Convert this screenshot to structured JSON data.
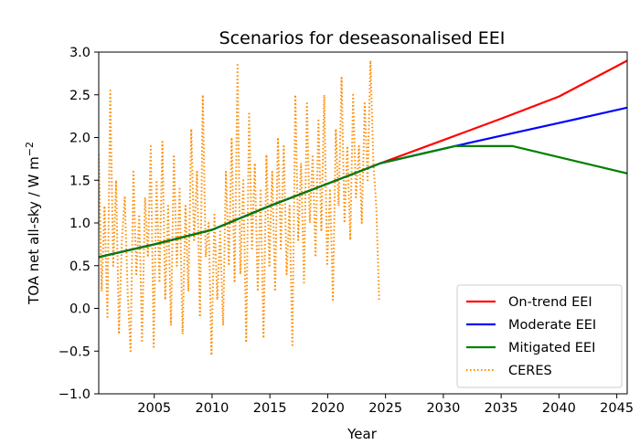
{
  "chart_data": {
    "type": "line",
    "title": "Scenarios for deseasonalised EEI",
    "xlabel": "Year",
    "ylabel": "TOA net all-sky / W m",
    "ylabel_superscript": "−2",
    "xlim": [
      2000.2,
      2045.9
    ],
    "ylim": [
      -1.0,
      3.0
    ],
    "x_ticks": [
      2005,
      2010,
      2015,
      2020,
      2025,
      2030,
      2035,
      2040,
      2045
    ],
    "y_ticks": [
      3.0,
      2.5,
      2.0,
      1.5,
      1.0,
      0.5,
      0.0,
      -0.5,
      -1.0
    ],
    "y_tick_labels": [
      "3.0",
      "2.5",
      "2.0",
      "1.5",
      "1.0",
      "0.5",
      "0.0",
      "−0.5",
      "−1.0"
    ],
    "grid": false,
    "legend_position": "lower-right",
    "series": [
      {
        "name": "On-trend EEI",
        "color": "#ff0000",
        "style": "solid",
        "x": [
          2000.2,
          2005,
          2010,
          2015,
          2020,
          2024.6,
          2030,
          2035,
          2040,
          2045.9
        ],
        "y": [
          0.6,
          0.75,
          0.92,
          1.2,
          1.46,
          1.7,
          1.97,
          2.22,
          2.48,
          2.9
        ]
      },
      {
        "name": "Moderate EEI",
        "color": "#0000ff",
        "style": "solid",
        "x": [
          2000.2,
          2005,
          2010,
          2015,
          2020,
          2024.6,
          2031,
          2035,
          2040,
          2045.9
        ],
        "y": [
          0.6,
          0.75,
          0.92,
          1.2,
          1.46,
          1.7,
          1.9,
          2.02,
          2.17,
          2.35
        ]
      },
      {
        "name": "Mitigated EEI",
        "color": "#008000",
        "style": "solid",
        "x": [
          2000.2,
          2005,
          2010,
          2015,
          2020,
          2024.6,
          2031,
          2036,
          2045.9
        ],
        "y": [
          0.6,
          0.75,
          0.92,
          1.2,
          1.46,
          1.7,
          1.9,
          1.9,
          1.58
        ]
      },
      {
        "name": "CERES",
        "color": "#ff8c00",
        "style": "dotted",
        "x": [
          2000.2,
          2000.45,
          2000.7,
          2000.95,
          2001.2,
          2001.45,
          2001.7,
          2001.95,
          2002.2,
          2002.45,
          2002.7,
          2002.95,
          2003.2,
          2003.45,
          2003.7,
          2003.95,
          2004.2,
          2004.45,
          2004.7,
          2004.95,
          2005.2,
          2005.45,
          2005.7,
          2005.95,
          2006.2,
          2006.45,
          2006.7,
          2006.95,
          2007.2,
          2007.45,
          2007.7,
          2007.95,
          2008.2,
          2008.45,
          2008.7,
          2008.95,
          2009.2,
          2009.45,
          2009.7,
          2009.95,
          2010.2,
          2010.45,
          2010.7,
          2010.95,
          2011.2,
          2011.45,
          2011.7,
          2011.95,
          2012.2,
          2012.45,
          2012.7,
          2012.95,
          2013.2,
          2013.45,
          2013.7,
          2013.95,
          2014.2,
          2014.45,
          2014.7,
          2014.95,
          2015.2,
          2015.45,
          2015.7,
          2015.95,
          2016.2,
          2016.45,
          2016.7,
          2016.95,
          2017.2,
          2017.45,
          2017.7,
          2017.95,
          2018.2,
          2018.45,
          2018.7,
          2018.95,
          2019.2,
          2019.45,
          2019.7,
          2019.95,
          2020.2,
          2020.45,
          2020.7,
          2020.95,
          2021.2,
          2021.45,
          2021.7,
          2021.95,
          2022.2,
          2022.45,
          2022.7,
          2022.95,
          2023.2,
          2023.45,
          2023.7,
          2023.95,
          2024.2,
          2024.45
        ],
        "y": [
          1.8,
          0.2,
          1.2,
          -0.1,
          2.55,
          0.5,
          1.5,
          -0.3,
          0.8,
          1.3,
          0.2,
          -0.5,
          1.6,
          0.4,
          1.1,
          -0.4,
          1.3,
          0.6,
          1.9,
          -0.45,
          1.5,
          0.3,
          1.95,
          0.1,
          1.2,
          -0.2,
          1.8,
          0.5,
          1.4,
          -0.3,
          1.2,
          0.2,
          2.1,
          0.8,
          1.6,
          -0.1,
          2.5,
          0.6,
          1.0,
          -0.55,
          1.1,
          0.1,
          0.9,
          -0.2,
          1.6,
          0.5,
          2.0,
          0.3,
          2.85,
          0.4,
          1.5,
          -0.4,
          2.3,
          0.7,
          1.7,
          0.2,
          1.4,
          -0.35,
          1.8,
          0.5,
          1.6,
          0.2,
          2.0,
          0.7,
          1.9,
          0.4,
          1.2,
          -0.45,
          2.5,
          0.8,
          1.7,
          0.3,
          2.4,
          1.0,
          1.8,
          0.6,
          2.2,
          0.9,
          2.5,
          0.5,
          1.4,
          0.1,
          2.1,
          1.2,
          2.7,
          1.0,
          1.9,
          0.8,
          2.5,
          1.3,
          1.9,
          1.0,
          2.4,
          1.5,
          2.9,
          1.7,
          1.2,
          0.1
        ]
      }
    ]
  }
}
